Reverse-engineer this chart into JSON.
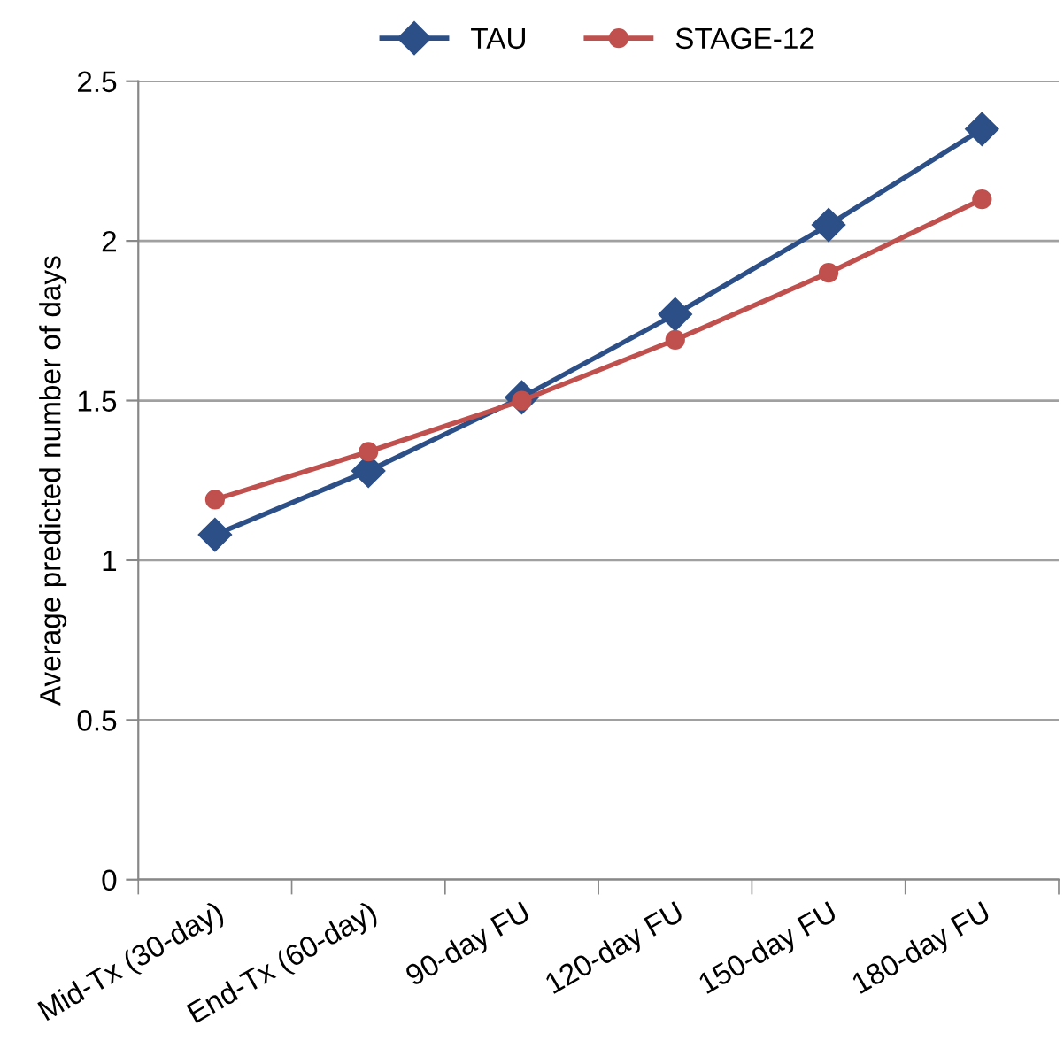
{
  "chart_data": {
    "type": "line",
    "ylabel": "Average predicted number of days",
    "categories": [
      "Mid-Tx (30-day)",
      "End-Tx (60-day)",
      "90-day FU",
      "120-day FU",
      "150-day FU",
      "180-day FU"
    ],
    "series": [
      {
        "name": "TAU",
        "color": "#2b4f86",
        "marker": "diamond",
        "values": [
          1.08,
          1.28,
          1.51,
          1.77,
          2.05,
          2.35
        ]
      },
      {
        "name": "STAGE-12",
        "color": "#c0504d",
        "marker": "circle",
        "values": [
          1.19,
          1.34,
          1.5,
          1.69,
          1.9,
          2.13
        ]
      }
    ],
    "ylim": [
      0,
      2.5
    ],
    "yticks": [
      0,
      0.5,
      1,
      1.5,
      2,
      2.5
    ],
    "grid": "y",
    "legend": "top",
    "line_style": "solid"
  }
}
